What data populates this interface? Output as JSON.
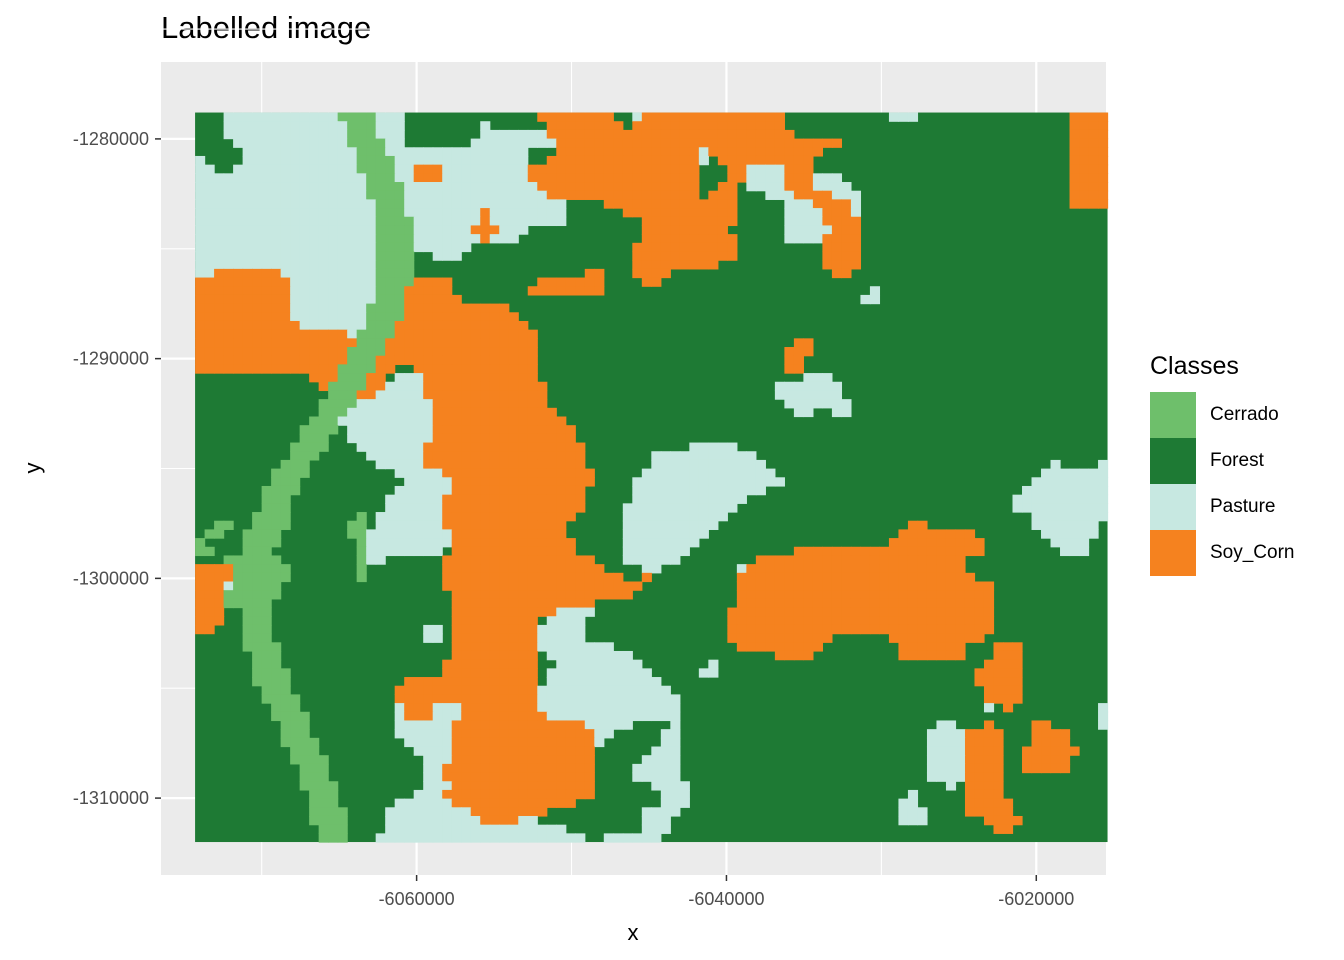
{
  "chart_data": {
    "type": "heatmap",
    "title": "Labelled image",
    "xlabel": "x",
    "ylabel": "y",
    "x_ticks": [
      -6060000,
      -6040000,
      -6020000
    ],
    "x_tick_labels": [
      "-6060000",
      "-6040000",
      "-6020000"
    ],
    "y_ticks": [
      -1280000,
      -1290000,
      -1300000,
      -1310000
    ],
    "y_tick_labels": [
      "-1280000",
      "-1290000",
      "-1300000",
      "-1310000"
    ],
    "xlim": [
      -6076500,
      -6015500
    ],
    "ylim": [
      -1313500,
      -1276500
    ],
    "raster_extent": {
      "xmin": -6074300,
      "xmax": -6015400,
      "ymin": -1312000,
      "ymax": -1278800
    },
    "grid": true,
    "legend": {
      "title": "Classes",
      "placement": "right",
      "classes": [
        {
          "label": "Cerrado",
          "color": "#6ebf6b"
        },
        {
          "label": "Forest",
          "color": "#1e7a34"
        },
        {
          "label": "Pasture",
          "color": "#c7e8e1"
        },
        {
          "label": "Soy_Corn",
          "color": "#f5821f"
        }
      ]
    }
  }
}
